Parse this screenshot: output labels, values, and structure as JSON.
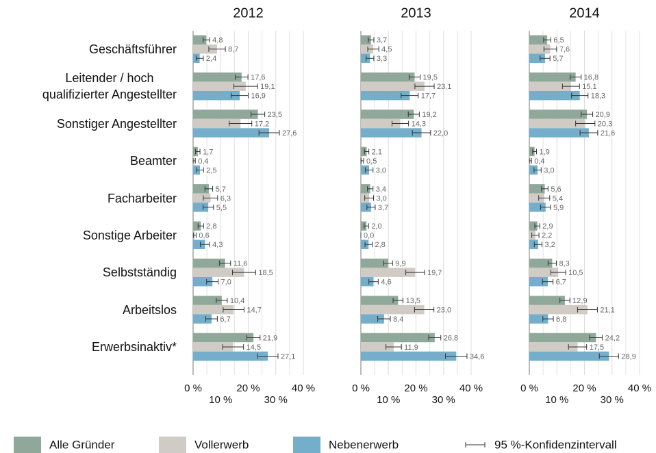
{
  "chart_data": {
    "type": "bar",
    "orientation": "horizontal",
    "categories": [
      "Geschäftsführer",
      "Leitender / hoch\nqualifizierter Angestellter",
      "Sonstiger Angestellter",
      "Beamter",
      "Facharbeiter",
      "Sonstige Arbeiter",
      "Selbstständig",
      "Arbeitslos",
      "Erwerbsinaktiv*"
    ],
    "series": [
      {
        "name": "Alle Gründer",
        "color": "#8fa89a"
      },
      {
        "name": "Vollerwerb",
        "color": "#d0cbc5"
      },
      {
        "name": "Nebenerwerb",
        "color": "#74aecb"
      }
    ],
    "error_label": "95 %-Konfidenzintervall",
    "xlim": [
      0,
      40
    ],
    "xticks": [
      {
        "value": 0,
        "label": "0 %"
      },
      {
        "value": 10,
        "label": "10 %"
      },
      {
        "value": 20,
        "label": "20 %"
      },
      {
        "value": 30,
        "label": "30 %"
      },
      {
        "value": 40,
        "label": "40 %"
      }
    ],
    "minor_xticks": [
      5,
      15,
      25,
      35
    ],
    "grid": true,
    "panels": [
      {
        "title": "2012",
        "values": [
          [
            4.8,
            17.6,
            23.5,
            1.7,
            5.7,
            2.8,
            11.6,
            10.4,
            21.9
          ],
          [
            8.7,
            19.1,
            17.2,
            0.4,
            6.3,
            0.6,
            18.5,
            14.7,
            14.5
          ],
          [
            2.4,
            16.9,
            27.6,
            2.5,
            5.5,
            4.3,
            7.0,
            6.7,
            27.1
          ]
        ],
        "errors": [
          [
            1.2,
            2.3,
            2.5,
            0.8,
            1.4,
            1.0,
            2.0,
            2.0,
            2.4
          ],
          [
            3.0,
            4.3,
            4.1,
            0.4,
            2.6,
            0.5,
            4.2,
            3.8,
            3.8
          ],
          [
            1.3,
            3.1,
            3.7,
            1.3,
            1.9,
            1.7,
            2.1,
            2.1,
            3.7
          ]
        ],
        "value_labels": [
          [
            "4,8",
            "17,6",
            "23,5",
            "1,7",
            "5,7",
            "2,8",
            "11,6",
            "10,4",
            "21,9"
          ],
          [
            "8,7",
            "19,1",
            "17,2",
            "0,4",
            "6,3",
            "0,6",
            "18,5",
            "14,7",
            "14,5"
          ],
          [
            "2,4",
            "16,9",
            "27,6",
            "2,5",
            "5,5",
            "4,3",
            "7,0",
            "6,7",
            "27,1"
          ]
        ]
      },
      {
        "title": "2013",
        "values": [
          [
            3.7,
            19.5,
            19.2,
            2.1,
            3.4,
            2.0,
            9.9,
            13.5,
            26.8
          ],
          [
            4.5,
            23.1,
            14.3,
            0.5,
            3.0,
            0.0,
            19.7,
            23.0,
            11.9
          ],
          [
            3.3,
            17.7,
            22.0,
            3.0,
            3.7,
            2.8,
            4.6,
            8.4,
            34.6
          ]
        ],
        "errors": [
          [
            1.0,
            2.0,
            2.0,
            0.8,
            1.0,
            0.8,
            1.6,
            1.8,
            2.2
          ],
          [
            2.0,
            3.5,
            3.0,
            0.5,
            1.6,
            0.0,
            3.4,
            3.5,
            2.8
          ],
          [
            1.4,
            3.1,
            3.3,
            1.4,
            1.5,
            1.3,
            1.7,
            2.3,
            3.9
          ]
        ],
        "value_labels": [
          [
            "3,7",
            "19,5",
            "19,2",
            "2,1",
            "3,4",
            "2,0",
            "9,9",
            "13,5",
            "26,8"
          ],
          [
            "4,5",
            "23,1",
            "14,3",
            "0,5",
            "3,0",
            "0,0",
            "19,7",
            "23,0",
            "11,9"
          ],
          [
            "3,3",
            "17,7",
            "22,0",
            "3,0",
            "3,7",
            "2,8",
            "4,6",
            "8,4",
            "34,6"
          ]
        ]
      },
      {
        "title": "2014",
        "values": [
          [
            6.5,
            16.8,
            20.9,
            1.9,
            5.6,
            2.9,
            8.3,
            12.9,
            24.2
          ],
          [
            7.6,
            15.1,
            20.3,
            0.4,
            5.4,
            2.2,
            10.5,
            21.1,
            17.5
          ],
          [
            5.7,
            18.3,
            21.6,
            3.0,
            5.9,
            3.2,
            6.7,
            6.8,
            28.9
          ]
        ],
        "errors": [
          [
            1.3,
            2.0,
            2.1,
            0.7,
            1.2,
            0.9,
            1.5,
            1.8,
            2.3
          ],
          [
            2.3,
            3.1,
            3.5,
            0.4,
            2.0,
            1.3,
            2.7,
            3.6,
            3.3
          ],
          [
            1.8,
            3.0,
            3.2,
            1.3,
            1.8,
            1.4,
            1.9,
            1.9,
            3.5
          ]
        ],
        "value_labels": [
          [
            "6,5",
            "16,8",
            "20,9",
            "1,9",
            "5,6",
            "2,9",
            "8,3",
            "12,9",
            "24,2"
          ],
          [
            "7,6",
            "15,1",
            "20,3",
            "0,4",
            "5,4",
            "2,2",
            "10,5",
            "21,1",
            "17,5"
          ],
          [
            "5,7",
            "18,3",
            "21,6",
            "3,0",
            "5,9",
            "3,2",
            "6,7",
            "6,8",
            "28,9"
          ]
        ]
      }
    ]
  }
}
